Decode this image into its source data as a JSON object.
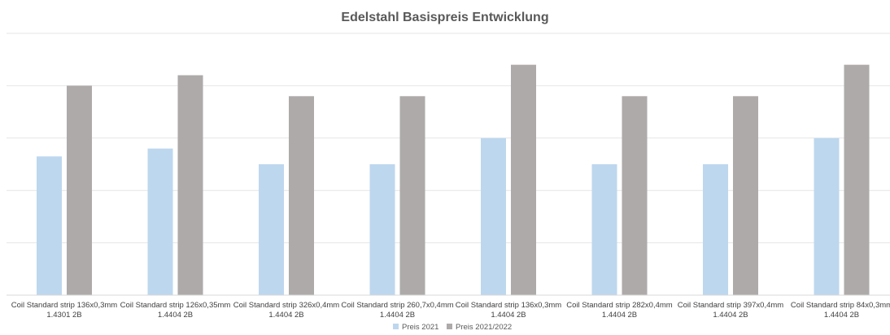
{
  "chart_data": {
    "type": "bar",
    "title": "Edelstahl Basispreis Entwicklung",
    "xlabel": "",
    "ylabel": "",
    "ylim": [
      0,
      5
    ],
    "grid": true,
    "legend_position": "bottom",
    "categories": [
      [
        "Coil Standard strip 136x0,3mm",
        "1.4301 2B"
      ],
      [
        "Coil Standard strip 126x0,35mm",
        "1.4404 2B"
      ],
      [
        "Coil Standard strip 326x0,4mm",
        "1.4404  2B"
      ],
      [
        "Coil Standard strip 260,7x0,4mm",
        "1.4404 2B"
      ],
      [
        "Coil Standard strip 136x0,3mm",
        "1.4404 2B"
      ],
      [
        "Coil Standard strip 282x0,4mm",
        "1.4404 2B"
      ],
      [
        "Coil Standard strip 397x0,4mm",
        "1.4404 2B"
      ],
      [
        "Coil Standard strip 84x0,3mm",
        "1.4404 2B"
      ]
    ],
    "series": [
      {
        "name": "Preis 2021",
        "color": "#bdd7ee",
        "values": [
          2.65,
          2.8,
          2.5,
          2.5,
          3.0,
          2.5,
          2.5,
          3.0
        ]
      },
      {
        "name": "Preis 2021/2022",
        "color": "#aeaaaa",
        "values": [
          4.0,
          4.2,
          3.8,
          3.8,
          4.4,
          3.8,
          3.8,
          4.4
        ]
      }
    ]
  }
}
